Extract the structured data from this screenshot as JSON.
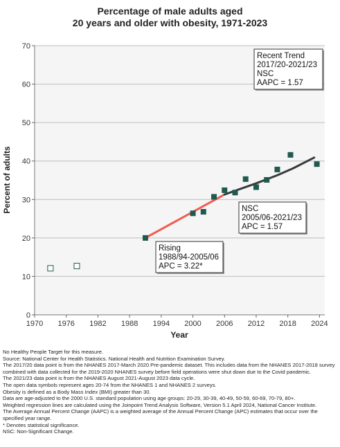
{
  "title_lines": [
    "Percentage of male adults aged",
    "20 years and older with obesity, 1971-2023"
  ],
  "chart_data": {
    "type": "scatter",
    "xlabel": "Year",
    "ylabel": "Percent of adults",
    "xlim": [
      1970,
      2025
    ],
    "ylim": [
      0,
      70
    ],
    "xticks": [
      1970,
      1976,
      1982,
      1988,
      1994,
      2000,
      2006,
      2012,
      2018,
      2024
    ],
    "yticks": [
      0,
      10,
      20,
      30,
      40,
      50,
      60,
      70
    ],
    "grid": "horizontal",
    "colors": {
      "point_fill": "#1f5a4f",
      "trend_rising": "#f25a50",
      "trend_nsc": "#3a3a3a",
      "plot_bg": "#f5f5f5"
    },
    "open_points": [
      {
        "x": 1973,
        "y": 12.1
      },
      {
        "x": 1978,
        "y": 12.7
      }
    ],
    "filled_points": [
      {
        "x": 1991,
        "y": 20.0
      },
      {
        "x": 2000,
        "y": 26.4
      },
      {
        "x": 2002,
        "y": 26.8
      },
      {
        "x": 2004,
        "y": 30.7
      },
      {
        "x": 2006,
        "y": 32.4
      },
      {
        "x": 2008,
        "y": 31.8
      },
      {
        "x": 2010,
        "y": 35.3
      },
      {
        "x": 2012,
        "y": 33.2
      },
      {
        "x": 2014,
        "y": 35.1
      },
      {
        "x": 2016,
        "y": 37.8
      },
      {
        "x": 2018.5,
        "y": 41.6
      },
      {
        "x": 2023.5,
        "y": 39.2
      }
    ],
    "trend_lines": [
      {
        "segment": "rising",
        "points": [
          {
            "x": 1991,
            "y": 20.0
          },
          {
            "x": 2006,
            "y": 31.3
          }
        ]
      },
      {
        "segment": "nsc",
        "points": [
          {
            "x": 2006,
            "y": 31.3
          },
          {
            "x": 2012,
            "y": 34.2
          },
          {
            "x": 2016,
            "y": 36.3
          },
          {
            "x": 2019,
            "y": 38.1
          },
          {
            "x": 2023,
            "y": 40.9
          }
        ]
      }
    ],
    "annotations": [
      {
        "id": "recent",
        "lines": [
          "Recent Trend",
          "2017/20-2021/23",
          "NSC",
          "AAPC =  1.57"
        ]
      },
      {
        "id": "nsc",
        "lines": [
          "NSC",
          "2005/06-2021/23",
          "APC =  1.57"
        ]
      },
      {
        "id": "rising",
        "lines": [
          "Rising",
          "1988/94-2005/06",
          "APC =  3.22*"
        ]
      }
    ]
  },
  "notes": [
    "No Healthy People Target for this measure.",
    "Source: National Center for Health Statistics. National Health and Nutrition Examination Survey.",
    "The 2017/20 data point is from the NHANES 2017-March 2020 Pre-pandemic dataset. This includes data from the NHANES 2017-2018 survey combined with data collected for the 2019-2020 NHANES survey before field operations were shut down due to the Covid pandemic.",
    "The 2021/23 data point is from the NHANES August 2021-August 2023 data cycle.",
    "The open data symbols represent ages 20-74 from the NHANES 1 and NHANES 2 surveys.",
    "Obesity is defined as a Body Mass Index (BMI) greater than 30.",
    "Data are age-adjusted to the 2000 U.S. standard population using age groups: 20-29, 30-39, 40-49, 50-59, 60-69, 70-79, 80+.",
    "Weighted regression lines are calculated using the Joinpoint Trend Analysis Software, Version 5.1 April 2024, National Cancer Institute.",
    "The Average Annual Percent Change (AAPC) is a weighted average of the Annual Percent Change (APC) estimates that occur over the specified year range.",
    "* Denotes statistical significance.",
    "NSC: Non-Significant Change."
  ]
}
